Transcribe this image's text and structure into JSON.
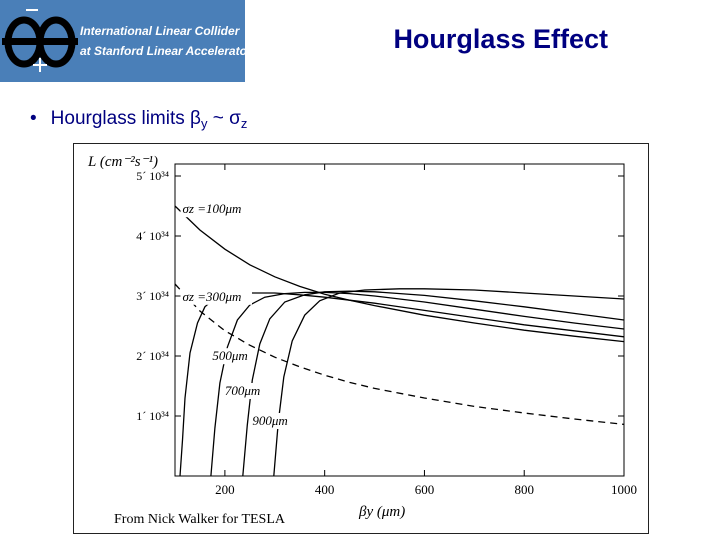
{
  "logo": {
    "line1": "International Linear Collider",
    "line2": "at Stanford Linear Accelerator Center",
    "bg_color": "#4a7fb8"
  },
  "slide": {
    "title": "Hourglass Effect",
    "title_color": "#000080",
    "bullet": {
      "dot": "•",
      "text": "Hourglass limits ",
      "beta": "β",
      "beta_sub": "y",
      "tilde": " ~ ",
      "sigma": "σ",
      "sigma_sub": "z"
    }
  },
  "chart_data": {
    "type": "line",
    "ylabel": "L (cm⁻²s⁻¹)",
    "xlabel": "βy (μm)",
    "caption": "From Nick Walker for TESLA",
    "xlim": [
      100,
      1000
    ],
    "ylim": [
      0,
      5.2e+34
    ],
    "x_ticks": [
      200,
      400,
      600,
      800,
      1000
    ],
    "x_tick_labels": [
      "200",
      "400",
      "600",
      "800",
      "1000"
    ],
    "y_ticks": [
      1e+34,
      2e+34,
      3e+34,
      4e+34,
      5e+34
    ],
    "y_tick_labels": [
      "1´ 10³⁴",
      "2´ 10³⁴",
      "3´ 10³⁴",
      "4´ 10³⁴",
      "5´ 10³⁴"
    ],
    "grid": false,
    "series": [
      {
        "name": "σz =100μm",
        "style": "solid",
        "x": [
          100,
          150,
          200,
          250,
          300,
          350,
          400,
          450,
          500,
          600,
          700,
          800,
          900,
          1000
        ],
        "y": [
          4.5e+34,
          4.1e+34,
          3.78e+34,
          3.52e+34,
          3.32e+34,
          3.16e+34,
          3.03e+34,
          2.93e+34,
          2.84e+34,
          2.68e+34,
          2.55e+34,
          2.43e+34,
          2.33e+34,
          2.24e+34
        ]
      },
      {
        "name": "σz =300μm",
        "style": "solid",
        "x": [
          110,
          115,
          120,
          130,
          145,
          160,
          180,
          200,
          250,
          300,
          350,
          400,
          500,
          600,
          700,
          800,
          900,
          1000
        ],
        "y": [
          0.0,
          6e+33,
          1.3e+34,
          2.05e+34,
          2.55e+34,
          2.82e+34,
          2.96e+34,
          3.02e+34,
          3.05e+34,
          3.05e+34,
          3.02e+34,
          2.98e+34,
          2.88e+34,
          2.76e+34,
          2.64e+34,
          2.52e+34,
          2.42e+34,
          2.32e+34
        ]
      },
      {
        "name": "500μm",
        "style": "solid",
        "x": [
          172,
          180,
          190,
          205,
          225,
          250,
          280,
          320,
          360,
          400,
          450,
          500,
          600,
          700,
          800,
          900,
          1000
        ],
        "y": [
          0.0,
          8e+33,
          1.55e+34,
          2.15e+34,
          2.6e+34,
          2.85e+34,
          2.98e+34,
          3.04e+34,
          3.06e+34,
          3.06e+34,
          3.04e+34,
          3e+34,
          2.9e+34,
          2.78e+34,
          2.66e+34,
          2.55e+34,
          2.45e+34
        ]
      },
      {
        "name": "700μm",
        "style": "solid",
        "x": [
          236,
          245,
          255,
          270,
          290,
          320,
          360,
          400,
          450,
          500,
          600,
          700,
          800,
          900,
          1000
        ],
        "y": [
          0.0,
          8.5e+33,
          1.6e+34,
          2.2e+34,
          2.62e+34,
          2.9e+34,
          3.02e+34,
          3.07e+34,
          3.08e+34,
          3.07e+34,
          3.01e+34,
          2.92e+34,
          2.82e+34,
          2.71e+34,
          2.6e+34
        ]
      },
      {
        "name": "900μm",
        "style": "solid",
        "x": [
          298,
          307,
          318,
          335,
          360,
          390,
          430,
          480,
          550,
          600,
          700,
          800,
          900,
          1000
        ],
        "y": [
          0.0,
          9e+33,
          1.65e+34,
          2.25e+34,
          2.68e+34,
          2.92e+34,
          3.05e+34,
          3.1e+34,
          3.12e+34,
          3.12e+34,
          3.1e+34,
          3.05e+34,
          3e+34,
          2.95e+34
        ]
      },
      {
        "name": "",
        "style": "dashed",
        "x": [
          100,
          150,
          200,
          250,
          300,
          350,
          400,
          450,
          500,
          600,
          700,
          800,
          900,
          1000
        ],
        "y": [
          3.2e+34,
          2.75e+34,
          2.42e+34,
          2.18e+34,
          1.98e+34,
          1.82e+34,
          1.68e+34,
          1.56e+34,
          1.46e+34,
          1.3e+34,
          1.16e+34,
          1.05e+34,
          9.5e+33,
          8.6e+33
        ]
      }
    ],
    "annotations": [
      {
        "text": "σz =100μm",
        "x": 115,
        "y": 4.38e+34
      },
      {
        "text": "σz =300μm",
        "x": 115,
        "y": 2.92e+34
      },
      {
        "text": "500μm",
        "x": 175,
        "y": 1.93e+34
      },
      {
        "text": "700μm",
        "x": 200,
        "y": 1.35e+34
      },
      {
        "text": "900μm",
        "x": 255,
        "y": 8.5e+33
      }
    ]
  }
}
